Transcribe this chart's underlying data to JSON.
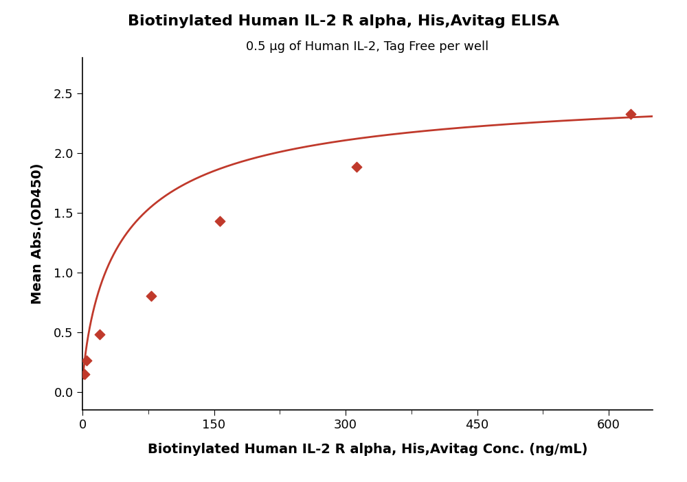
{
  "title": "Biotinylated Human IL-2 R alpha, His,Avitag ELISA",
  "subtitle": "0.5 μg of Human IL-2, Tag Free per well",
  "xlabel": "Biotinylated Human IL-2 R alpha, His,Avitag Conc. (ng/mL)",
  "ylabel": "Mean Abs.(OD450)",
  "x_data": [
    2.44,
    4.88,
    19.53,
    78.13,
    156.25,
    312.5,
    625.0
  ],
  "y_data": [
    0.145,
    0.265,
    0.48,
    0.805,
    1.43,
    1.885,
    2.33
  ],
  "line_color": "#C0392B",
  "marker_color": "#C0392B",
  "xlim": [
    0,
    650
  ],
  "ylim": [
    -0.15,
    2.8
  ],
  "xticks": [
    0,
    150,
    300,
    450,
    600
  ],
  "yticks": [
    0.0,
    0.5,
    1.0,
    1.5,
    2.0,
    2.5
  ],
  "title_fontsize": 16,
  "subtitle_fontsize": 13,
  "axis_label_fontsize": 14,
  "tick_fontsize": 13,
  "background_color": "#ffffff"
}
